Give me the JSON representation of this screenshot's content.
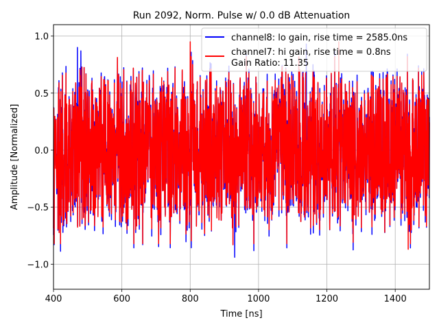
{
  "chart_data": {
    "type": "line",
    "title": "Run 2092, Norm. Pulse w/ 0.0 dB Attenuation",
    "xlabel": "Time [ns]",
    "ylabel": "Amplitude [Normalized]",
    "xlim": [
      400,
      1500
    ],
    "ylim": [
      -1.22,
      1.1
    ],
    "grid": true,
    "x_ticks": [
      400,
      600,
      800,
      1000,
      1200,
      1400
    ],
    "y_ticks": [
      -1.0,
      -0.5,
      0.0,
      0.5,
      1.0
    ],
    "x_tick_labels": [
      "400",
      "600",
      "800",
      "1000",
      "1200",
      "1400"
    ],
    "y_tick_labels": [
      "−1.0",
      "−0.5",
      "0.0",
      "0.5",
      "1.0"
    ],
    "legend_position": "top-right",
    "series": [
      {
        "name": "channel8: lo gain, rise time = 2585.0ns",
        "color": "#0000ff",
        "x_start": 400,
        "x_end": 1500,
        "points": 2200,
        "notable_peaks": [
          {
            "x": 470,
            "y": 0.9
          },
          {
            "x": 480,
            "y": 0.87
          },
          {
            "x": 930,
            "y": -0.94
          },
          {
            "x": 1140,
            "y": 0.93
          }
        ]
      },
      {
        "name": "channel7: hi gain, rise time = 0.8ns",
        "color": "#ff0000",
        "x_start": 400,
        "x_end": 1500,
        "points": 2200,
        "notable_peaks": [
          {
            "x": 800,
            "y": 0.95
          },
          {
            "x": 925,
            "y": -0.83
          },
          {
            "x": 1235,
            "y": 0.95
          },
          {
            "x": 1438,
            "y": -0.87
          }
        ]
      }
    ],
    "annotation": "Gain Ratio: 11.35"
  }
}
